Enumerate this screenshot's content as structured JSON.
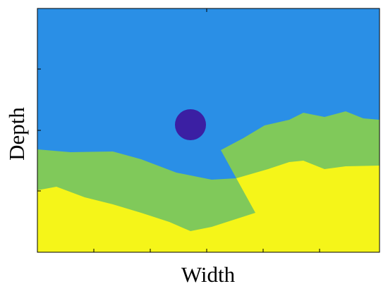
{
  "figure": {
    "x_label": "Width",
    "y_label": "Depth"
  }
}
